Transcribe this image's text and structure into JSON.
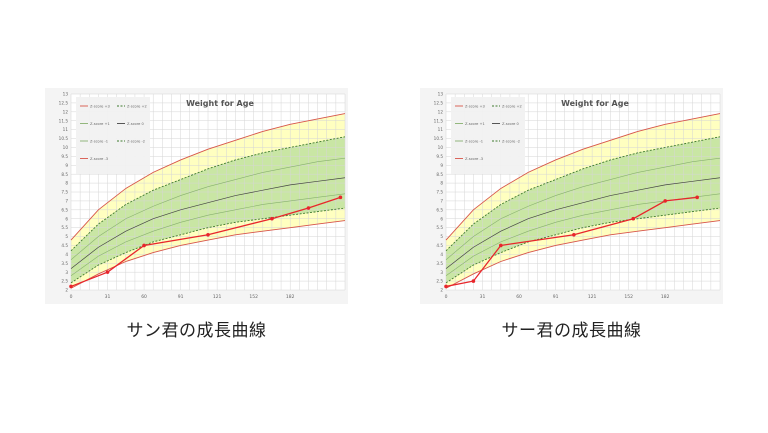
{
  "charts": [
    {
      "caption": "サン君の成長曲線",
      "chart_data": {
        "type": "line",
        "title": "Weight for Age",
        "xlim": [
          0,
          300
        ],
        "ylim": [
          2,
          13
        ],
        "x_ticks": [
          "0",
          "31",
          "60",
          "91",
          "121",
          "152",
          "182"
        ],
        "y_ticks": [
          "2",
          "2.5",
          "3",
          "3.5",
          "4",
          "4.5",
          "5",
          "5.5",
          "6",
          "6.5",
          "7",
          "7.5",
          "8",
          "8.5",
          "9",
          "9.5",
          "10",
          "10.5",
          "11",
          "11.5",
          "12",
          "12.5",
          "13"
        ],
        "legend": [
          "Z-score +3",
          "Z-score +2",
          "Z-score +1",
          "Z-score 0",
          "Z-score -1",
          "Z-score -2",
          "Z-score -3"
        ],
        "legend_position": "top-left",
        "grid": true,
        "reference_x": [
          0,
          30,
          60,
          90,
          120,
          150,
          180,
          210,
          240,
          270,
          300
        ],
        "reference": {
          "p3": [
            4.8,
            6.5,
            7.7,
            8.6,
            9.3,
            9.9,
            10.4,
            10.9,
            11.3,
            11.6,
            11.9
          ],
          "p2": [
            4.2,
            5.7,
            6.8,
            7.6,
            8.2,
            8.8,
            9.3,
            9.7,
            10.0,
            10.3,
            10.6
          ],
          "p1": [
            3.7,
            5.0,
            6.0,
            6.7,
            7.3,
            7.8,
            8.2,
            8.6,
            8.9,
            9.2,
            9.4
          ],
          "zero": [
            3.2,
            4.4,
            5.3,
            6.0,
            6.5,
            6.9,
            7.3,
            7.6,
            7.9,
            8.1,
            8.3
          ],
          "m1": [
            2.8,
            3.9,
            4.7,
            5.3,
            5.8,
            6.2,
            6.5,
            6.8,
            7.0,
            7.2,
            7.4
          ],
          "m2": [
            2.4,
            3.4,
            4.1,
            4.7,
            5.1,
            5.5,
            5.8,
            6.0,
            6.2,
            6.4,
            6.6
          ],
          "m3": [
            2.1,
            2.9,
            3.6,
            4.1,
            4.5,
            4.8,
            5.1,
            5.3,
            5.5,
            5.7,
            5.9
          ]
        },
        "series": [
          {
            "x": [
              0,
              40,
              80,
              150,
              220,
              260,
              295
            ],
            "y": [
              2.2,
              3.0,
              4.5,
              5.1,
              6.0,
              6.6,
              7.2
            ]
          }
        ],
        "colors": {
          "outer": "#ffffc0",
          "inner": "#c9e6a4",
          "series": "#e8262b",
          "line3": "#d7554a",
          "line2": "#3f7a2e",
          "line1": "#88b070",
          "line0": "#444444"
        }
      }
    },
    {
      "caption": "サー君の成長曲線",
      "chart_data": {
        "type": "line",
        "title": "Weight for Age",
        "xlim": [
          0,
          300
        ],
        "ylim": [
          2,
          13
        ],
        "x_ticks": [
          "0",
          "31",
          "60",
          "91",
          "121",
          "152",
          "182"
        ],
        "y_ticks": [
          "2",
          "2.5",
          "3",
          "3.5",
          "4",
          "4.5",
          "5",
          "5.5",
          "6",
          "6.5",
          "7",
          "7.5",
          "8",
          "8.5",
          "9",
          "9.5",
          "10",
          "10.5",
          "11",
          "11.5",
          "12",
          "12.5",
          "13"
        ],
        "legend": [
          "Z-score +3",
          "Z-score +2",
          "Z-score +1",
          "Z-score 0",
          "Z-score -1",
          "Z-score -2",
          "Z-score -3"
        ],
        "legend_position": "top-left",
        "grid": true,
        "reference_x": [
          0,
          30,
          60,
          90,
          120,
          150,
          180,
          210,
          240,
          270,
          300
        ],
        "reference": {
          "p3": [
            4.8,
            6.5,
            7.7,
            8.6,
            9.3,
            9.9,
            10.4,
            10.9,
            11.3,
            11.6,
            11.9
          ],
          "p2": [
            4.2,
            5.7,
            6.8,
            7.6,
            8.2,
            8.8,
            9.3,
            9.7,
            10.0,
            10.3,
            10.6
          ],
          "p1": [
            3.7,
            5.0,
            6.0,
            6.7,
            7.3,
            7.8,
            8.2,
            8.6,
            8.9,
            9.2,
            9.4
          ],
          "zero": [
            3.2,
            4.4,
            5.3,
            6.0,
            6.5,
            6.9,
            7.3,
            7.6,
            7.9,
            8.1,
            8.3
          ],
          "m1": [
            2.8,
            3.9,
            4.7,
            5.3,
            5.8,
            6.2,
            6.5,
            6.8,
            7.0,
            7.2,
            7.4
          ],
          "m2": [
            2.4,
            3.4,
            4.1,
            4.7,
            5.1,
            5.5,
            5.8,
            6.0,
            6.2,
            6.4,
            6.6
          ],
          "m3": [
            2.1,
            2.9,
            3.6,
            4.1,
            4.5,
            4.8,
            5.1,
            5.3,
            5.5,
            5.7,
            5.9
          ]
        },
        "series": [
          {
            "x": [
              0,
              30,
              60,
              140,
              205,
              240,
              275
            ],
            "y": [
              2.2,
              2.5,
              4.5,
              5.1,
              6.0,
              7.0,
              7.2
            ]
          }
        ],
        "colors": {
          "outer": "#ffffc0",
          "inner": "#c9e6a4",
          "series": "#e8262b",
          "line3": "#d7554a",
          "line2": "#3f7a2e",
          "line1": "#88b070",
          "line0": "#444444"
        }
      }
    }
  ]
}
